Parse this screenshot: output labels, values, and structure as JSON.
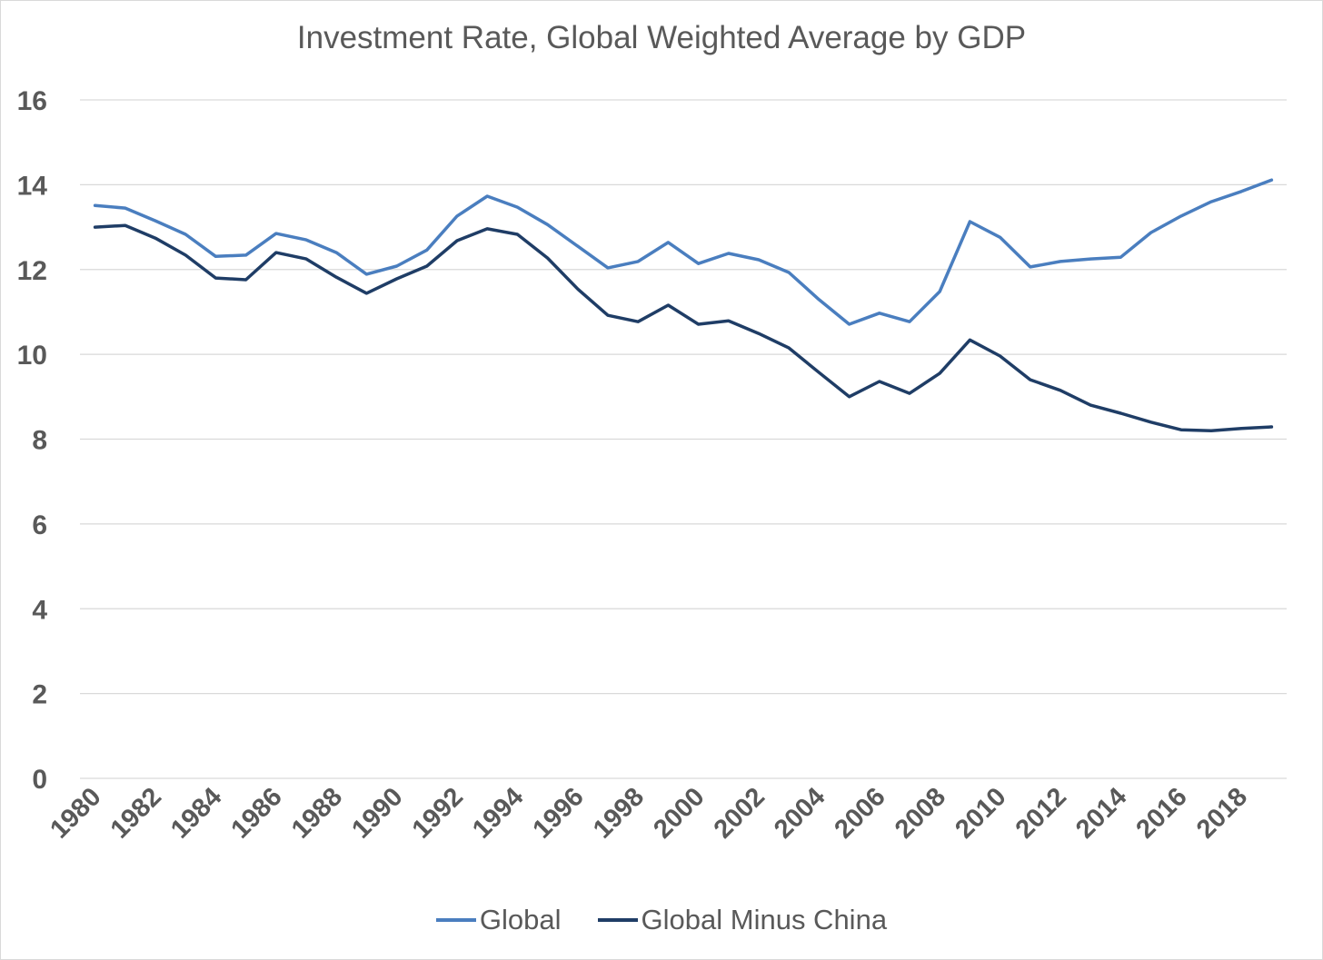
{
  "chart_data": {
    "type": "line",
    "title": "Investment Rate, Global Weighted Average by GDP",
    "xlabel": "",
    "ylabel": "",
    "ylim": [
      0,
      16
    ],
    "yticks": [
      "0",
      "2",
      "4",
      "6",
      "8",
      "10",
      "12",
      "14",
      "16"
    ],
    "grid": true,
    "legend_position": "bottom",
    "x": [
      1980,
      1981,
      1982,
      1983,
      1984,
      1985,
      1986,
      1987,
      1988,
      1989,
      1990,
      1991,
      1992,
      1993,
      1994,
      1995,
      1996,
      1997,
      1998,
      1999,
      2000,
      2001,
      2002,
      2003,
      2004,
      2005,
      2006,
      2007,
      2008,
      2009,
      2010,
      2011,
      2012,
      2013,
      2014,
      2015,
      2016,
      2017,
      2018,
      2019
    ],
    "xtick_labels": [
      "1980",
      "1982",
      "1984",
      "1986",
      "1988",
      "1990",
      "1992",
      "1994",
      "1996",
      "1998",
      "2000",
      "2002",
      "2004",
      "2006",
      "2008",
      "2010",
      "2012",
      "2014",
      "2016",
      "2018"
    ],
    "series": [
      {
        "name": "Global",
        "color": "#4a7ebf",
        "values": [
          13.51,
          13.45,
          13.15,
          12.83,
          12.31,
          12.34,
          12.85,
          12.7,
          12.4,
          11.89,
          12.08,
          12.46,
          13.26,
          13.73,
          13.47,
          13.06,
          12.55,
          12.04,
          12.19,
          12.64,
          12.14,
          12.38,
          12.23,
          11.93,
          11.29,
          10.71,
          10.97,
          10.77,
          11.48,
          13.13,
          12.76,
          12.06,
          12.19,
          12.25,
          12.29,
          12.87,
          13.26,
          13.6,
          13.84,
          14.11
        ]
      },
      {
        "name": "Global Minus China",
        "color": "#1f3d66",
        "values": [
          13.0,
          13.04,
          12.74,
          12.34,
          11.8,
          11.76,
          12.4,
          12.25,
          11.82,
          11.44,
          11.78,
          12.08,
          12.68,
          12.96,
          12.83,
          12.27,
          11.54,
          10.92,
          10.77,
          11.16,
          10.71,
          10.79,
          10.49,
          10.15,
          9.57,
          9.0,
          9.36,
          9.08,
          9.55,
          10.34,
          9.96,
          9.4,
          9.15,
          8.8,
          8.61,
          8.4,
          8.22,
          8.2,
          8.25,
          8.29
        ]
      }
    ]
  }
}
